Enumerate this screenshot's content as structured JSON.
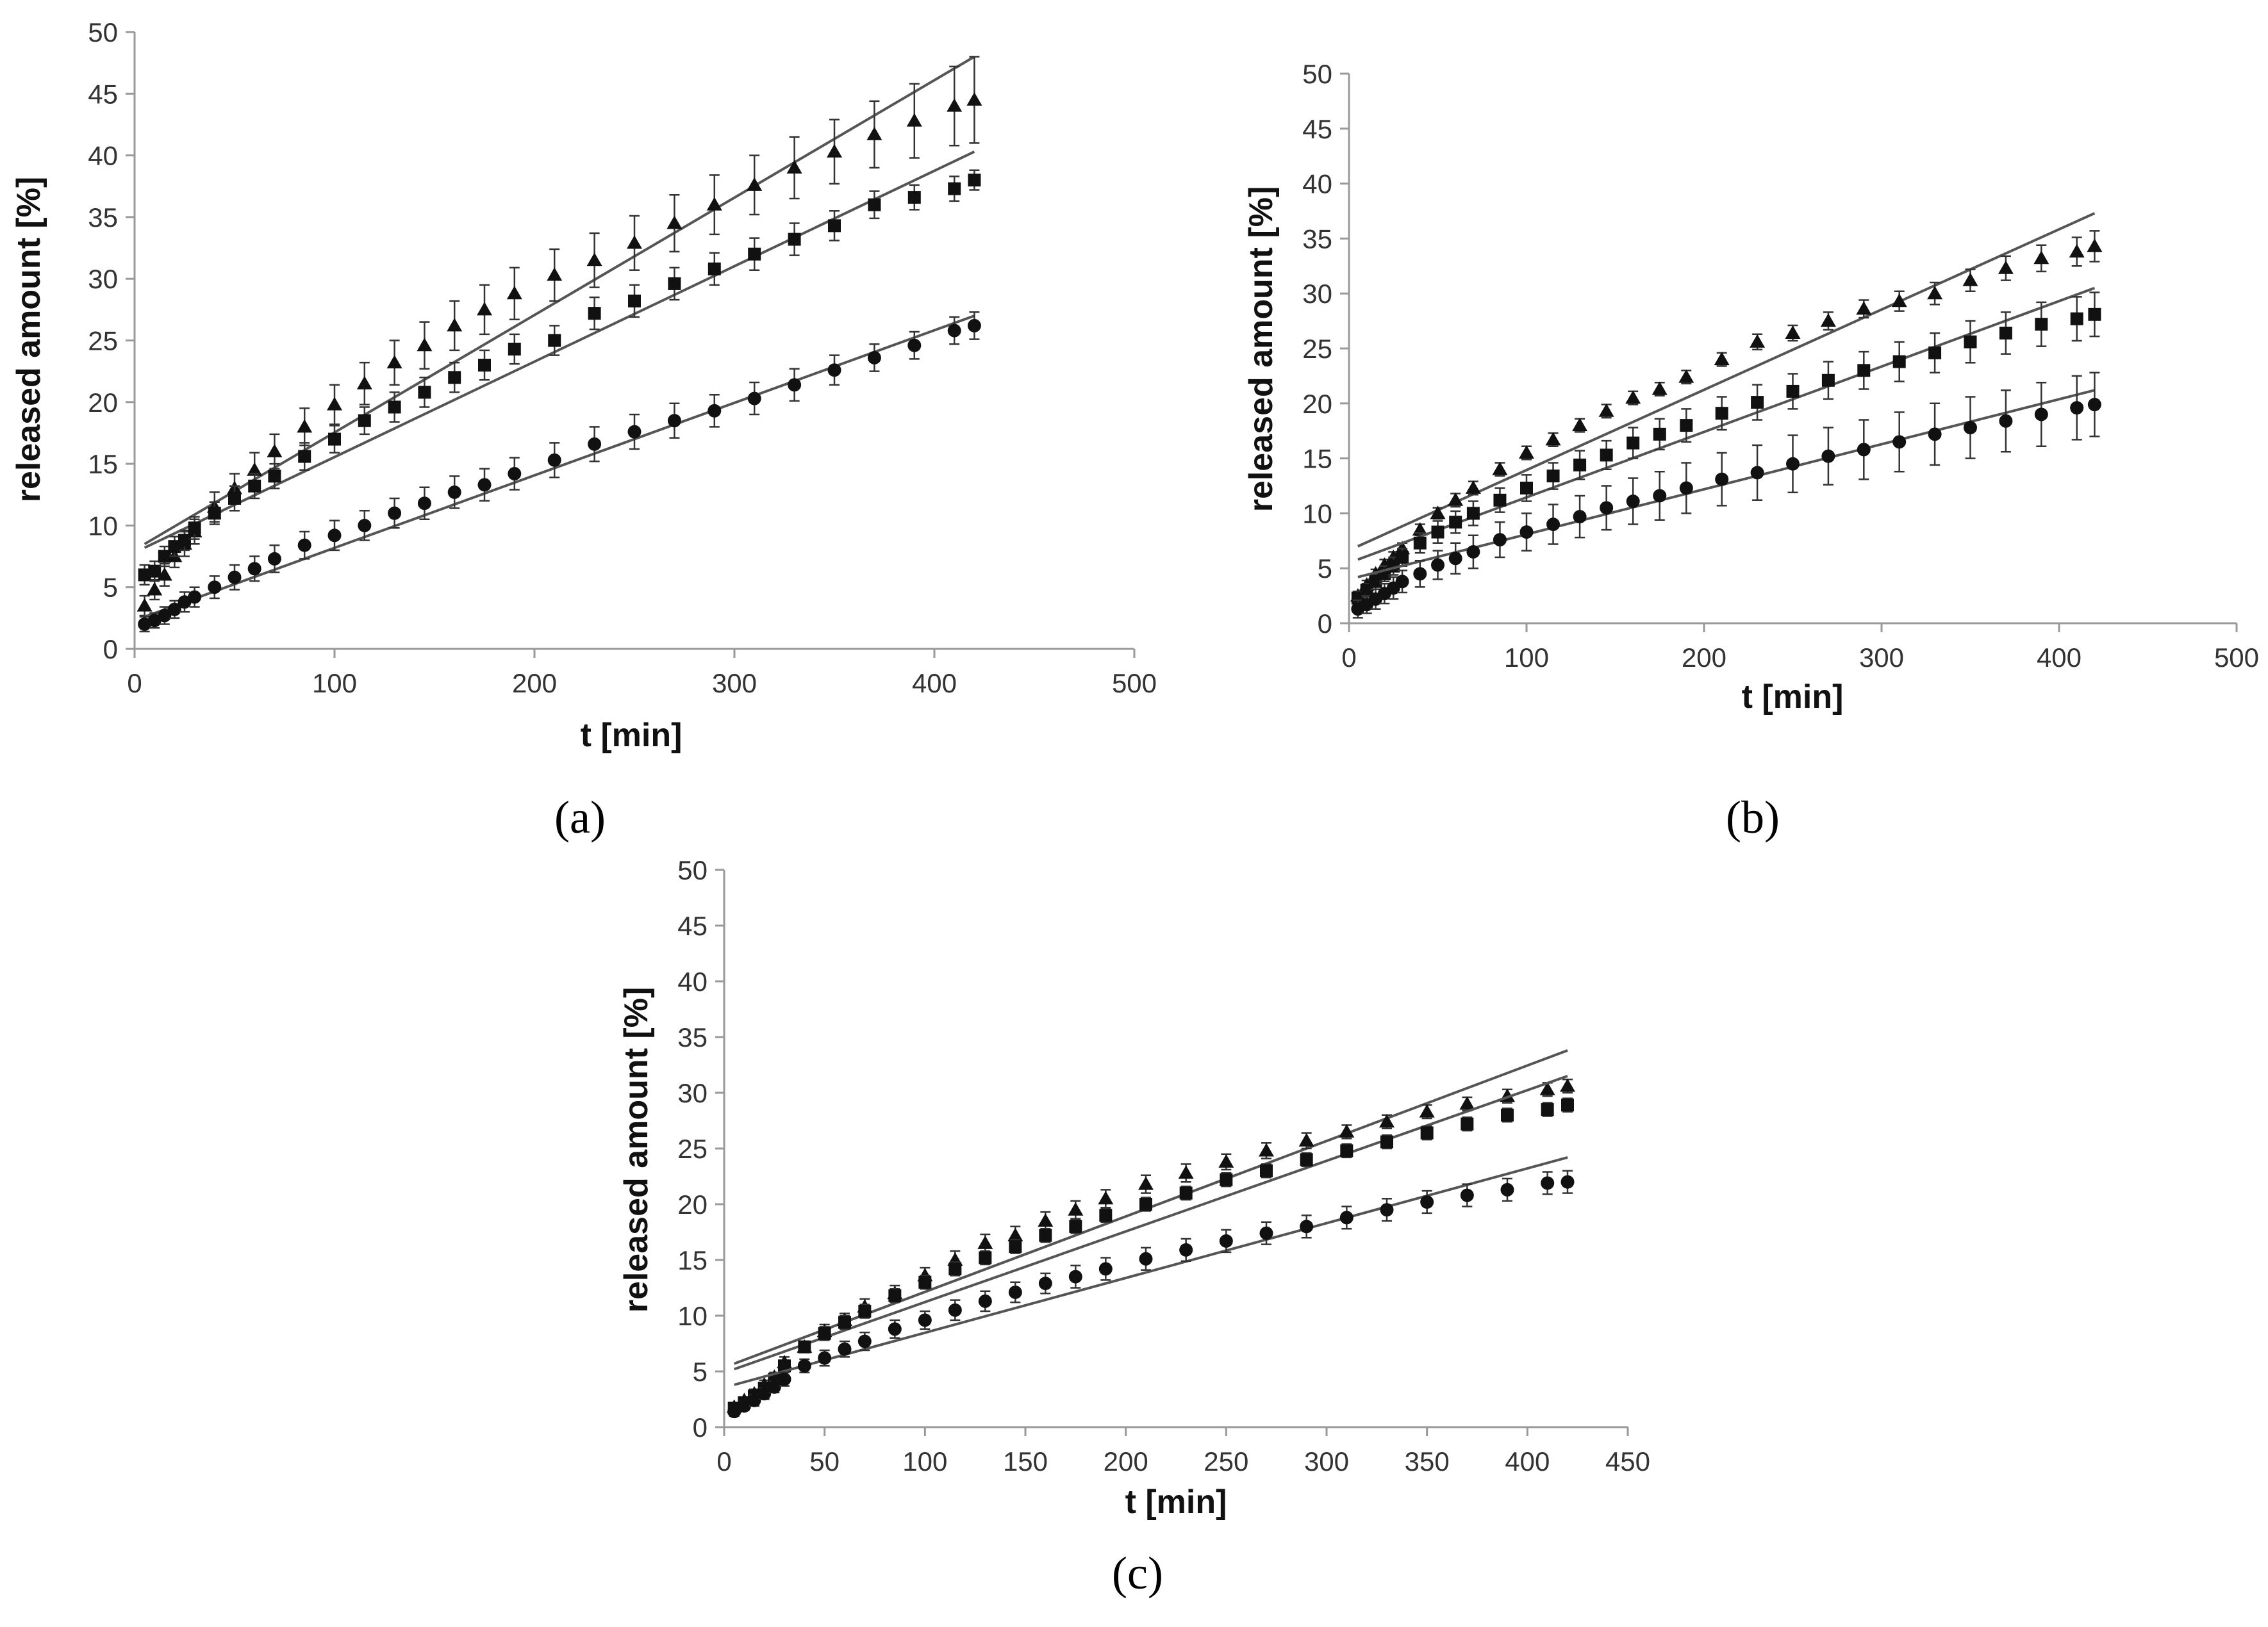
{
  "chart_data": [
    {
      "id": "a",
      "type": "scatter",
      "caption": "(a)",
      "xlabel": "t [min]",
      "ylabel": "released amount [%]",
      "xlim": [
        0,
        500
      ],
      "ylim": [
        0,
        50
      ],
      "xticks": [
        "0",
        "100",
        "200",
        "300",
        "400",
        "500"
      ],
      "yticks": [
        "0",
        "5",
        "10",
        "15",
        "20",
        "25",
        "30",
        "35",
        "40",
        "45",
        "50"
      ],
      "x": [
        5,
        10,
        15,
        20,
        25,
        30,
        40,
        50,
        60,
        70,
        85,
        100,
        115,
        130,
        145,
        160,
        175,
        190,
        210,
        230,
        250,
        270,
        290,
        310,
        330,
        350,
        370,
        390,
        410,
        420
      ],
      "series": [
        {
          "name": "triangle",
          "marker": "triangle",
          "values": [
            3.5,
            4.8,
            6.0,
            7.5,
            8.5,
            9.5,
            11.5,
            13.0,
            14.5,
            16.0,
            18.0,
            19.8,
            21.5,
            23.2,
            24.6,
            26.2,
            27.5,
            28.8,
            30.3,
            31.5,
            32.9,
            34.5,
            36.0,
            37.6,
            39.0,
            40.3,
            41.7,
            42.8,
            44.0,
            44.5
          ],
          "errors": [
            0.8,
            0.8,
            0.9,
            0.9,
            1.0,
            1.0,
            1.2,
            1.2,
            1.4,
            1.4,
            1.5,
            1.6,
            1.7,
            1.8,
            1.9,
            2.0,
            2.0,
            2.1,
            2.1,
            2.2,
            2.2,
            2.3,
            2.4,
            2.4,
            2.5,
            2.6,
            2.7,
            3.0,
            3.2,
            3.5
          ],
          "fit": [
            [
              5,
              8.5
            ],
            [
              420,
              48.0
            ]
          ]
        },
        {
          "name": "square",
          "marker": "square",
          "values": [
            6.0,
            6.3,
            7.5,
            8.3,
            8.8,
            9.8,
            11.0,
            12.2,
            13.2,
            14.0,
            15.6,
            17.0,
            18.5,
            19.6,
            20.8,
            22.0,
            23.0,
            24.3,
            25.0,
            27.2,
            28.2,
            29.6,
            30.8,
            32.0,
            33.2,
            34.3,
            36.0,
            36.6,
            37.3,
            38.0
          ],
          "errors": [
            0.8,
            0.8,
            0.8,
            0.8,
            0.8,
            0.9,
            0.9,
            1.0,
            1.0,
            1.0,
            1.1,
            1.1,
            1.1,
            1.2,
            1.2,
            1.2,
            1.2,
            1.2,
            1.2,
            1.3,
            1.3,
            1.3,
            1.3,
            1.3,
            1.3,
            1.2,
            1.1,
            1.0,
            1.0,
            0.8
          ],
          "fit": [
            [
              5,
              8.2
            ],
            [
              420,
              40.3
            ]
          ]
        },
        {
          "name": "circle",
          "marker": "circle",
          "values": [
            2.0,
            2.3,
            2.7,
            3.2,
            3.8,
            4.2,
            5.0,
            5.8,
            6.5,
            7.3,
            8.4,
            9.2,
            10.0,
            11.0,
            11.8,
            12.7,
            13.3,
            14.2,
            15.3,
            16.6,
            17.6,
            18.5,
            19.3,
            20.3,
            21.4,
            22.6,
            23.6,
            24.6,
            25.8,
            26.2
          ],
          "errors": [
            0.6,
            0.6,
            0.7,
            0.7,
            0.8,
            0.8,
            0.9,
            1.0,
            1.0,
            1.1,
            1.1,
            1.2,
            1.2,
            1.2,
            1.3,
            1.3,
            1.3,
            1.3,
            1.4,
            1.4,
            1.4,
            1.4,
            1.3,
            1.3,
            1.3,
            1.2,
            1.1,
            1.1,
            1.1,
            1.1
          ],
          "fit": [
            [
              5,
              2.6
            ],
            [
              420,
              27.0
            ]
          ]
        }
      ]
    },
    {
      "id": "b",
      "type": "scatter",
      "caption": "(b)",
      "xlabel": "t [min]",
      "ylabel": "released amount [%]",
      "xlim": [
        0,
        500
      ],
      "ylim": [
        0,
        50
      ],
      "xticks": [
        "0",
        "100",
        "200",
        "300",
        "400",
        "500"
      ],
      "yticks": [
        "0",
        "5",
        "10",
        "15",
        "20",
        "25",
        "30",
        "35",
        "40",
        "45",
        "50"
      ],
      "x": [
        5,
        10,
        15,
        20,
        25,
        30,
        40,
        50,
        60,
        70,
        85,
        100,
        115,
        130,
        145,
        160,
        175,
        190,
        210,
        230,
        250,
        270,
        290,
        310,
        330,
        350,
        370,
        390,
        410,
        420
      ],
      "series": [
        {
          "name": "triangle",
          "marker": "triangle",
          "values": [
            2.5,
            3.5,
            4.5,
            5.3,
            6.0,
            6.8,
            8.5,
            10.0,
            11.2,
            12.3,
            14.0,
            15.5,
            16.7,
            18.0,
            19.3,
            20.5,
            21.3,
            22.4,
            24.0,
            25.6,
            26.4,
            27.5,
            28.6,
            29.3,
            30.0,
            31.2,
            32.3,
            33.2,
            33.8,
            34.3
          ],
          "errors": [
            0.4,
            0.4,
            0.4,
            0.5,
            0.5,
            0.5,
            0.5,
            0.5,
            0.6,
            0.6,
            0.6,
            0.6,
            0.6,
            0.6,
            0.6,
            0.6,
            0.6,
            0.6,
            0.6,
            0.7,
            0.7,
            0.8,
            0.8,
            0.9,
            1.0,
            1.0,
            1.1,
            1.2,
            1.3,
            1.4
          ],
          "fit": [
            [
              5,
              7.0
            ],
            [
              420,
              37.3
            ]
          ]
        },
        {
          "name": "square",
          "marker": "square",
          "values": [
            2.3,
            3.0,
            3.8,
            4.5,
            5.2,
            6.0,
            7.3,
            8.3,
            9.2,
            10.0,
            11.2,
            12.3,
            13.4,
            14.4,
            15.3,
            16.4,
            17.2,
            18.0,
            19.1,
            20.1,
            21.1,
            22.1,
            23.0,
            23.8,
            24.6,
            25.6,
            26.4,
            27.2,
            27.7,
            28.1
          ],
          "errors": [
            0.6,
            0.6,
            0.7,
            0.7,
            0.8,
            0.8,
            0.9,
            1.0,
            1.0,
            1.1,
            1.1,
            1.2,
            1.2,
            1.3,
            1.3,
            1.4,
            1.4,
            1.5,
            1.5,
            1.6,
            1.6,
            1.7,
            1.7,
            1.8,
            1.8,
            1.9,
            1.9,
            2.0,
            2.0,
            2.0
          ],
          "fit": [
            [
              5,
              5.8
            ],
            [
              420,
              30.5
            ]
          ]
        },
        {
          "name": "circle",
          "marker": "circle",
          "values": [
            1.3,
            1.7,
            2.2,
            2.7,
            3.2,
            3.8,
            4.5,
            5.3,
            5.9,
            6.5,
            7.6,
            8.3,
            9.0,
            9.7,
            10.5,
            11.1,
            11.6,
            12.3,
            13.1,
            13.7,
            14.5,
            15.2,
            15.8,
            16.5,
            17.2,
            17.8,
            18.4,
            19.0,
            19.6,
            19.9
          ],
          "errors": [
            0.8,
            0.8,
            0.9,
            0.9,
            1.0,
            1.0,
            1.2,
            1.3,
            1.4,
            1.5,
            1.6,
            1.7,
            1.8,
            1.9,
            2.0,
            2.1,
            2.2,
            2.3,
            2.4,
            2.5,
            2.6,
            2.6,
            2.7,
            2.7,
            2.8,
            2.8,
            2.8,
            2.9,
            2.9,
            2.9
          ],
          "fit": [
            [
              5,
              4.2
            ],
            [
              420,
              21.2
            ]
          ]
        }
      ]
    },
    {
      "id": "c",
      "type": "scatter",
      "caption": "(c)",
      "xlabel": "t [min]",
      "ylabel": "released amount [%]",
      "xlim": [
        0,
        450
      ],
      "ylim": [
        0,
        50
      ],
      "xticks": [
        "0",
        "50",
        "100",
        "150",
        "200",
        "250",
        "300",
        "350",
        "400",
        "450"
      ],
      "yticks": [
        "0",
        "5",
        "10",
        "15",
        "20",
        "25",
        "30",
        "35",
        "40",
        "45",
        "50"
      ],
      "x": [
        5,
        10,
        15,
        20,
        25,
        30,
        40,
        50,
        60,
        70,
        85,
        100,
        115,
        130,
        145,
        160,
        175,
        190,
        210,
        230,
        250,
        270,
        290,
        310,
        330,
        350,
        370,
        390,
        410,
        420
      ],
      "series": [
        {
          "name": "triangle",
          "marker": "triangle",
          "values": [
            1.8,
            2.4,
            3.0,
            3.8,
            4.5,
            5.8,
            7.2,
            8.6,
            9.6,
            10.8,
            12.0,
            13.6,
            15.0,
            16.5,
            17.2,
            18.5,
            19.5,
            20.5,
            21.8,
            22.8,
            23.8,
            24.8,
            25.7,
            26.5,
            27.4,
            28.3,
            29.0,
            29.7,
            30.3,
            30.6
          ],
          "errors": [
            0.3,
            0.3,
            0.4,
            0.4,
            0.4,
            0.5,
            0.5,
            0.6,
            0.6,
            0.7,
            0.7,
            0.7,
            0.8,
            0.8,
            0.8,
            0.8,
            0.8,
            0.8,
            0.8,
            0.8,
            0.7,
            0.7,
            0.7,
            0.6,
            0.6,
            0.6,
            0.6,
            0.6,
            0.6,
            0.6
          ],
          "fit": [
            [
              5,
              5.7
            ],
            [
              420,
              33.8
            ]
          ]
        },
        {
          "name": "square",
          "marker": "square",
          "values": [
            1.7,
            2.2,
            2.8,
            3.5,
            4.3,
            5.5,
            7.2,
            8.4,
            9.4,
            10.4,
            11.8,
            13.0,
            14.2,
            15.2,
            16.2,
            17.2,
            18.0,
            19.0,
            20.0,
            21.0,
            22.2,
            23.0,
            24.0,
            24.8,
            25.6,
            26.4,
            27.2,
            28.0,
            28.5,
            28.9
          ],
          "errors": [
            0.3,
            0.3,
            0.4,
            0.4,
            0.4,
            0.5,
            0.5,
            0.6,
            0.6,
            0.6,
            0.6,
            0.6,
            0.6,
            0.6,
            0.6,
            0.6,
            0.6,
            0.6,
            0.6,
            0.6,
            0.6,
            0.6,
            0.6,
            0.6,
            0.6,
            0.6,
            0.6,
            0.6,
            0.6,
            0.6
          ],
          "fit": [
            [
              5,
              5.2
            ],
            [
              420,
              31.5
            ]
          ]
        },
        {
          "name": "circle",
          "marker": "circle",
          "values": [
            1.4,
            1.9,
            2.4,
            3.0,
            3.6,
            4.3,
            5.5,
            6.2,
            7.0,
            7.7,
            8.8,
            9.6,
            10.5,
            11.3,
            12.1,
            12.9,
            13.5,
            14.2,
            15.1,
            15.9,
            16.7,
            17.4,
            18.0,
            18.8,
            19.5,
            20.2,
            20.8,
            21.3,
            21.9,
            22.0
          ],
          "errors": [
            0.4,
            0.4,
            0.5,
            0.5,
            0.5,
            0.6,
            0.6,
            0.7,
            0.7,
            0.8,
            0.8,
            0.8,
            0.9,
            0.9,
            0.9,
            0.9,
            1.0,
            1.0,
            1.0,
            1.0,
            1.0,
            1.0,
            1.0,
            1.0,
            1.0,
            1.0,
            1.0,
            1.0,
            1.0,
            1.0
          ],
          "fit": [
            [
              5,
              3.8
            ],
            [
              420,
              24.2
            ]
          ]
        }
      ]
    }
  ]
}
